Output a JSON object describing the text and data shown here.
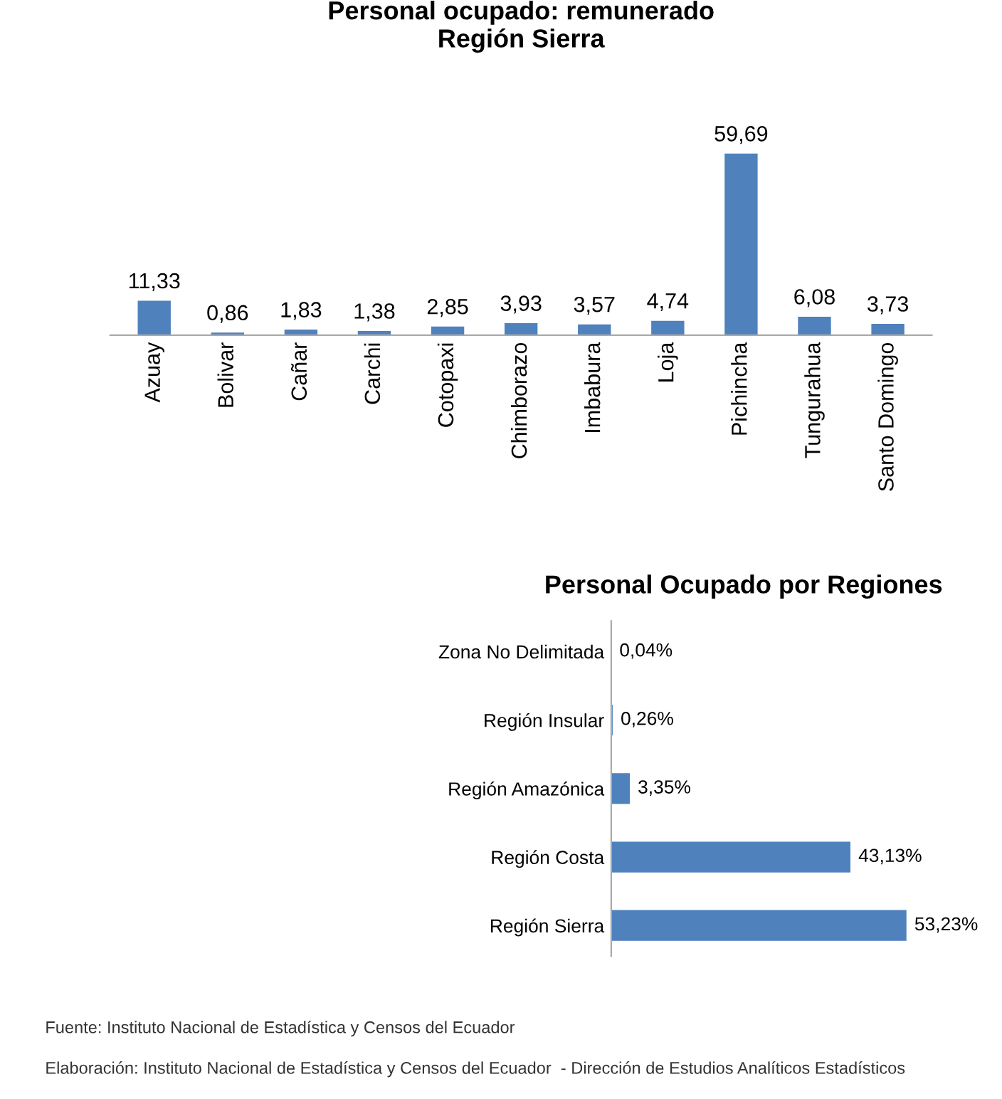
{
  "chart_data": [
    {
      "type": "bar",
      "title": "Personal ocupado: remunerado\nRegión Sierra",
      "categories": [
        "Azuay",
        "Bolivar",
        "Cañar",
        "Carchi",
        "Cotopaxi",
        "Chimborazo",
        "Imbabura",
        "Loja",
        "Pichincha",
        "Tungurahua",
        "Santo Domingo"
      ],
      "values": [
        11.33,
        0.86,
        1.83,
        1.38,
        2.85,
        3.93,
        3.57,
        4.74,
        59.69,
        6.08,
        3.73
      ],
      "value_labels": [
        "11,33",
        "0,86",
        "1,83",
        "1,38",
        "2,85",
        "3,93",
        "3,57",
        "4,74",
        "59,69",
        "6,08",
        "3,73"
      ],
      "color": "#4f81bd"
    },
    {
      "type": "bar",
      "orientation": "horizontal",
      "title": "Personal Ocupado por Regiones",
      "categories": [
        "Zona No Delimitada",
        "Región Insular",
        "Región Amazónica",
        "Región Costa",
        "Región Sierra"
      ],
      "values": [
        0.04,
        0.26,
        3.35,
        43.13,
        53.23
      ],
      "value_labels": [
        "0,04%",
        "0,26%",
        "3,35%",
        "43,13%",
        "53,23%"
      ],
      "color": "#4f81bd",
      "annotations": [
        "Fuente: Instituto Nacional de Estadística y Censos del Ecuador",
        "Elaboración: Instituto Nacional de Estadística y Censos del Ecuador  - Dirección de Estudios Analíticos Estadísticos"
      ]
    }
  ]
}
